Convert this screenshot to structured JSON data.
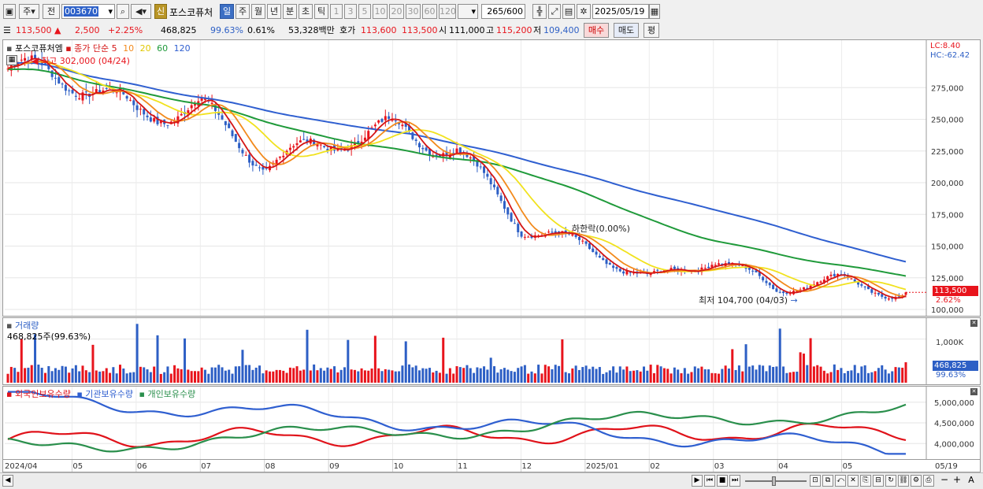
{
  "toolbar": {
    "market_label": "주",
    "prev_label": "전",
    "code": "003670",
    "name": "포스코퓨처",
    "new_label": "신",
    "period_buttons": [
      "일",
      "주",
      "월",
      "년",
      "분",
      "초",
      "틱"
    ],
    "period_active": "일",
    "interval_buttons": [
      "1",
      "3",
      "5",
      "10",
      "20",
      "30",
      "60",
      "120"
    ],
    "count": "265",
    "count_total": "/600",
    "date": "2025/05/19"
  },
  "quote": {
    "price": "113,500",
    "change": "2,500",
    "change_pct": "+2.25%",
    "volume": "468,825",
    "volume_ratio": "99.63%",
    "turnover_ratio": "0.61%",
    "amount": "53,328백만",
    "bidask_label": "호가",
    "ask": "113,600",
    "bid": "113,500",
    "open_label": "시",
    "open": "111,000",
    "high_label": "고",
    "high": "115,200",
    "low_label": "저",
    "low": "109,400",
    "buy_label": "매수",
    "sell_label": "매도",
    "even_label": "평"
  },
  "colors": {
    "up": "#e8141c",
    "down": "#2d5fc5",
    "ma5": "#d41515",
    "ma10": "#f28a1c",
    "ma20": "#f1e21e",
    "ma60": "#1f9a3a",
    "ma120": "#2f5fd0",
    "foreign": "#e0121a",
    "institution": "#2f5fd0",
    "individual": "#2a8f4c"
  },
  "price_panel": {
    "legend_name": "포스코퓨처엠",
    "legend_ma_label": "종가 단순",
    "legend_ma_periods": [
      "5",
      "10",
      "20",
      "60",
      "120"
    ],
    "lc_label": "LC:8.40",
    "hc_label": "HC:-62.42",
    "high_annot": "최고 302,000 (04/24)",
    "low_annot": "최저 104,700 (04/03)",
    "limit_annot": "하한락(0.00%)",
    "current_tag": "113,500",
    "current_pct": "2.62%",
    "y_ticks": [
      "275,000",
      "250,000",
      "225,000",
      "200,000",
      "175,000",
      "150,000",
      "125,000",
      "100,000"
    ]
  },
  "volume_panel": {
    "title": "거래량",
    "sub": "468,825주(99.63%)",
    "y_tick": "1,000K",
    "current_tag": "468,825",
    "current_pct": "99.63%"
  },
  "holding_panel": {
    "legend": [
      "외국인보유수량",
      "기관보유수량",
      "개인보유수량"
    ],
    "y_ticks": [
      "5,000,000",
      "4,500,000",
      "4,000,000"
    ]
  },
  "x_axis": {
    "labels": [
      "2024/04",
      "05",
      "06",
      "07",
      "08",
      "09",
      "10",
      "11",
      "12",
      "2025/01",
      "02",
      "03",
      "04",
      "05",
      "05/19"
    ]
  },
  "chart_data": {
    "type": "candlestick",
    "x_labels": [
      "2024/04",
      "05",
      "06",
      "07",
      "08",
      "09",
      "10",
      "11",
      "12",
      "2025/01",
      "02",
      "03",
      "04",
      "05"
    ],
    "price_ylim": [
      100000,
      305000
    ],
    "price_anchor_points": [
      {
        "x": "2024/04",
        "close": 290000
      },
      {
        "x": "05",
        "close": 272000
      },
      {
        "x": "06",
        "close": 258000
      },
      {
        "x": "07",
        "close": 268000
      },
      {
        "x": "08",
        "close": 210000
      },
      {
        "x": "09",
        "close": 225000
      },
      {
        "x": "10",
        "close": 250000
      },
      {
        "x": "11",
        "close": 230000
      },
      {
        "x": "12",
        "close": 160000
      },
      {
        "x": "2025/01",
        "close": 148000
      },
      {
        "x": "02",
        "close": 128000
      },
      {
        "x": "03",
        "close": 140000
      },
      {
        "x": "04",
        "close": 112000
      },
      {
        "x": "05",
        "close": 125000
      },
      {
        "x": "05/19",
        "close": 113500
      }
    ],
    "highest": {
      "value": 302000,
      "date": "04/24"
    },
    "lowest": {
      "value": 104700,
      "date": "04/03"
    },
    "moving_averages": [
      "5",
      "10",
      "20",
      "60",
      "120"
    ],
    "ma120_endpoints": [
      298000,
      141000
    ],
    "ma60_endpoints": [
      289000,
      130000
    ],
    "volume_latest": 468825,
    "holdings_ylim": [
      3700000,
      5300000
    ],
    "holdings_series": [
      {
        "name": "외국인보유수량",
        "start": 4100000,
        "end": 4300000
      },
      {
        "name": "기관보유수량",
        "start": 5100000,
        "end": 3850000
      },
      {
        "name": "개인보유수량",
        "start": 3900000,
        "end": 4800000
      }
    ]
  }
}
